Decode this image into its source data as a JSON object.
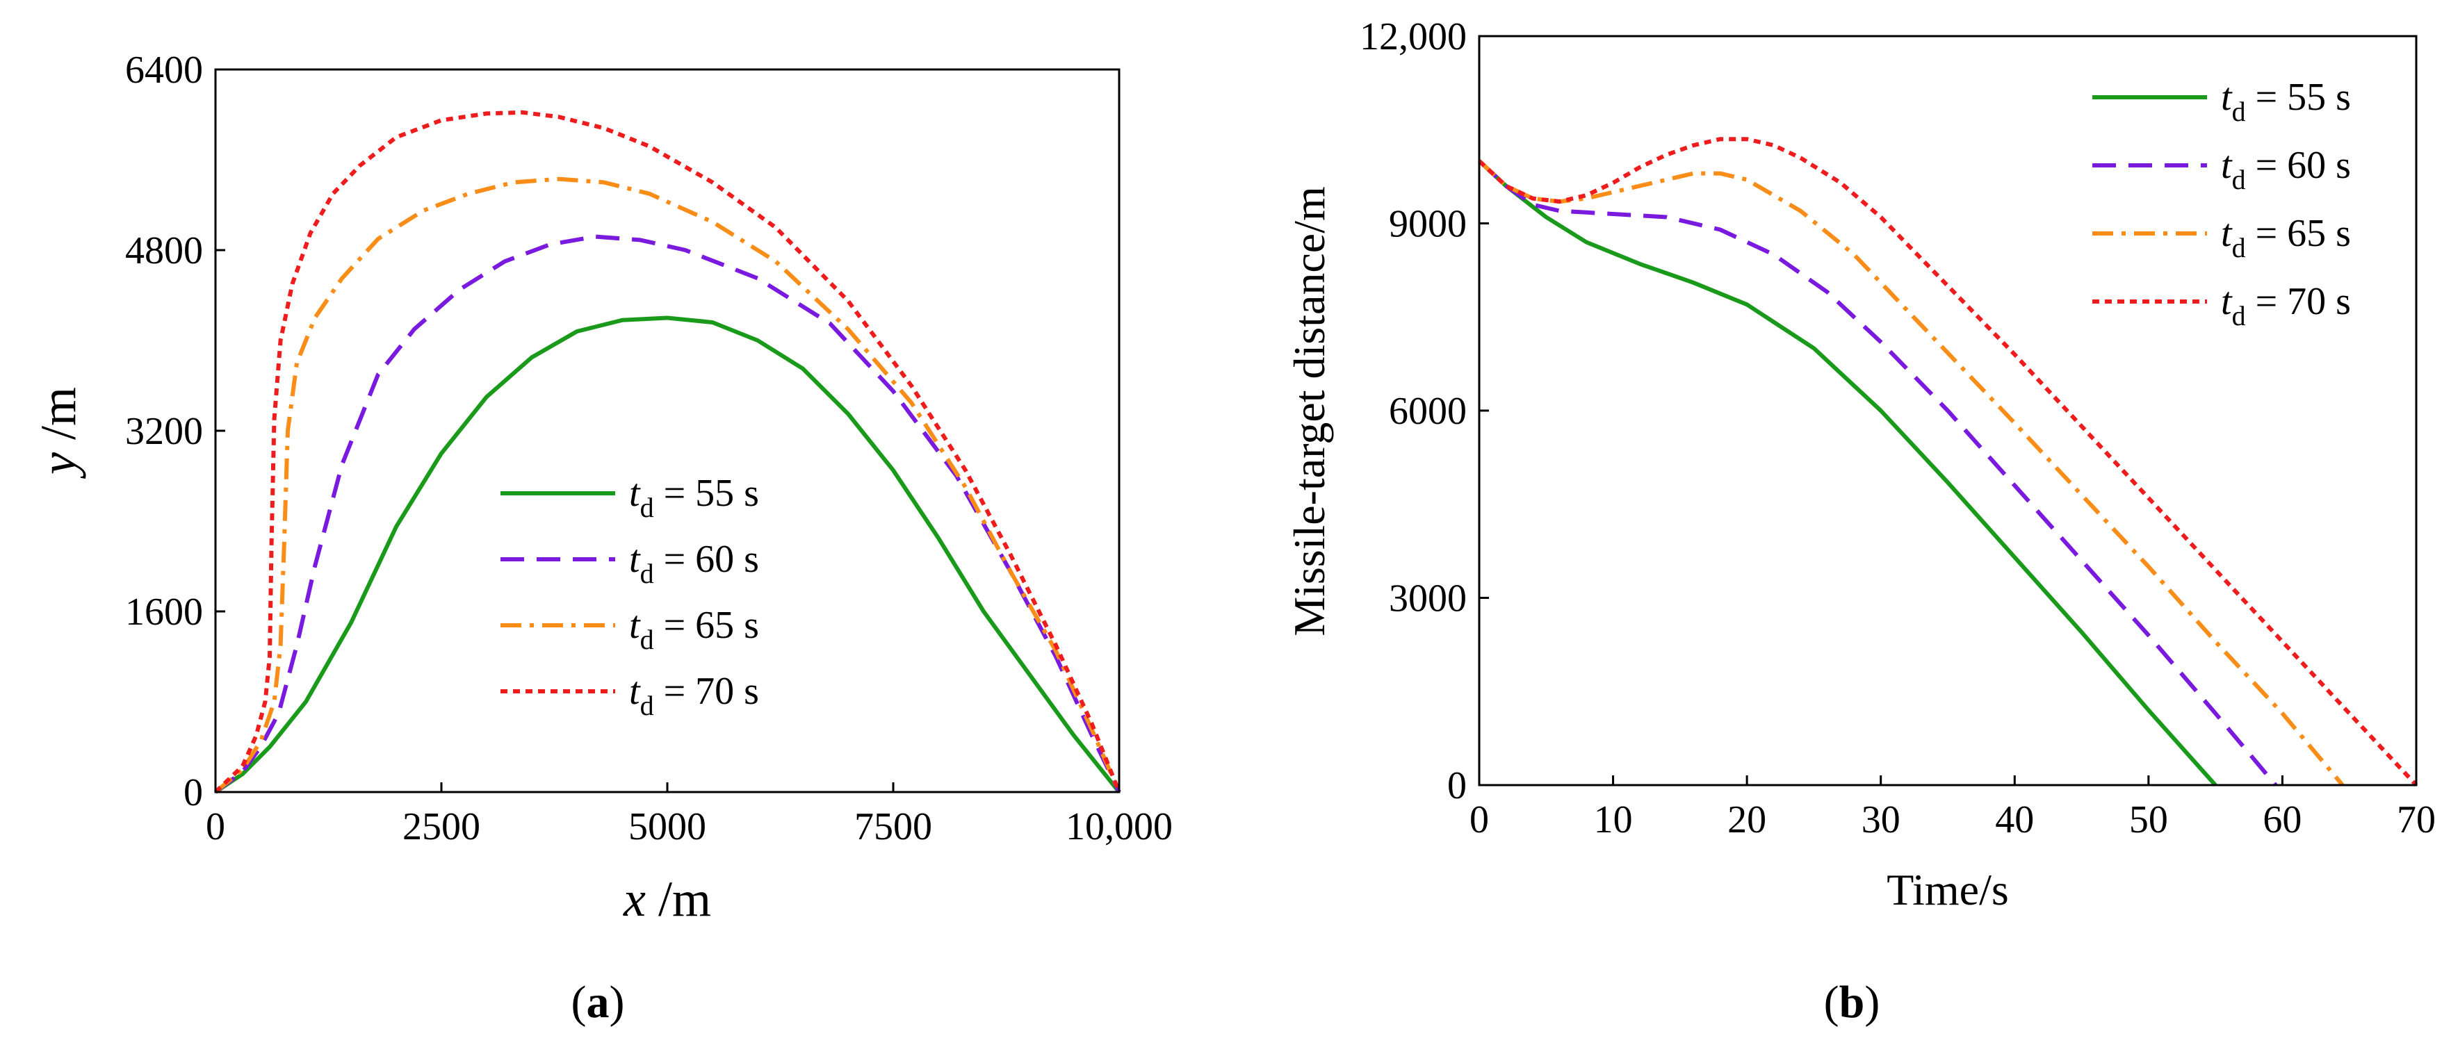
{
  "chart_data": [
    {
      "id": "a",
      "type": "line",
      "panel_label": {
        "pre": "(",
        "letter": "a",
        "post": ")"
      },
      "title": "",
      "xlabel": {
        "var": "x",
        "unit": " /m"
      },
      "ylabel": {
        "var": "y",
        "unit": " /m"
      },
      "xlim": [
        0,
        10000
      ],
      "ylim": [
        0,
        6400
      ],
      "xticks": [
        0,
        2500,
        5000,
        7500,
        10000
      ],
      "xtick_labels": [
        "0",
        "2500",
        "5000",
        "7500",
        "10,000"
      ],
      "yticks": [
        0,
        1600,
        3200,
        4800,
        6400
      ],
      "ytick_labels": [
        "0",
        "1600",
        "3200",
        "4800",
        "6400"
      ],
      "legend_position": "center",
      "series": [
        {
          "var": "t",
          "sub": "d",
          "rest": " = 55 s",
          "color": "#1a9a1a",
          "dash": "solid",
          "x": [
            0,
            300,
            600,
            1000,
            1500,
            2000,
            2500,
            3000,
            3500,
            4000,
            4500,
            5000,
            5500,
            6000,
            6500,
            7000,
            7500,
            8000,
            8500,
            9000,
            9500,
            10000
          ],
          "y": [
            0,
            160,
            400,
            800,
            1500,
            2350,
            3000,
            3500,
            3850,
            4080,
            4180,
            4200,
            4160,
            4000,
            3750,
            3350,
            2850,
            2250,
            1600,
            1050,
            500,
            0
          ]
        },
        {
          "var": "t",
          "sub": "d",
          "rest": " = 60 s",
          "color": "#7a1adf",
          "dash": "dash",
          "x": [
            0,
            300,
            500,
            700,
            900,
            1100,
            1400,
            1800,
            2200,
            2700,
            3200,
            3700,
            4200,
            4700,
            5200,
            6000,
            6800,
            7500,
            8200,
            8800,
            9300,
            9700,
            10000
          ],
          "y": [
            0,
            180,
            400,
            700,
            1300,
            2000,
            2900,
            3700,
            4100,
            4450,
            4700,
            4850,
            4920,
            4890,
            4800,
            4550,
            4150,
            3550,
            2800,
            1950,
            1200,
            500,
            0
          ]
        },
        {
          "var": "t",
          "sub": "d",
          "rest": " = 65 s",
          "color": "#f98d17",
          "dash": "dashdot",
          "x": [
            0,
            300,
            500,
            650,
            720,
            760,
            800,
            900,
            1100,
            1400,
            1800,
            2300,
            2800,
            3300,
            3800,
            4300,
            4800,
            5500,
            6200,
            7000,
            7700,
            8300,
            8800,
            9300,
            9700,
            10000
          ],
          "y": [
            0,
            200,
            450,
            800,
            1300,
            2200,
            3200,
            3800,
            4200,
            4550,
            4900,
            5150,
            5300,
            5400,
            5430,
            5400,
            5300,
            5050,
            4700,
            4100,
            3450,
            2700,
            1950,
            1250,
            550,
            0
          ]
        },
        {
          "var": "t",
          "sub": "d",
          "rest": " = 70 s",
          "color": "#ee1c1c",
          "dash": "dot",
          "x": [
            0,
            300,
            450,
            550,
            600,
            620,
            650,
            720,
            850,
            1050,
            1300,
            1600,
            2000,
            2500,
            3000,
            3400,
            3800,
            4300,
            4800,
            5500,
            6200,
            7000,
            7700,
            8300,
            8800,
            9300,
            9700,
            10000
          ],
          "y": [
            0,
            230,
            500,
            800,
            1200,
            2200,
            3300,
            4000,
            4500,
            4950,
            5300,
            5550,
            5800,
            5950,
            6010,
            6020,
            5980,
            5880,
            5720,
            5400,
            5000,
            4350,
            3600,
            2850,
            2100,
            1300,
            600,
            0
          ]
        }
      ]
    },
    {
      "id": "b",
      "type": "line",
      "panel_label": {
        "pre": "(",
        "letter": "b",
        "post": ")"
      },
      "title": "",
      "xlabel": "Time/s",
      "ylabel": "Missile-target distance/m",
      "xlim": [
        0,
        70
      ],
      "ylim": [
        0,
        12000
      ],
      "xticks": [
        0,
        10,
        20,
        30,
        40,
        50,
        60,
        70
      ],
      "xtick_labels": [
        "0",
        "10",
        "20",
        "30",
        "40",
        "50",
        "60",
        "70"
      ],
      "yticks": [
        0,
        3000,
        6000,
        9000,
        12000
      ],
      "ytick_labels": [
        "0",
        "3000",
        "6000",
        "9000",
        "12,000"
      ],
      "legend_position": "top-right",
      "series": [
        {
          "var": "t",
          "sub": "d",
          "rest": " = 55 s",
          "color": "#1a9a1a",
          "dash": "solid",
          "x": [
            0,
            2,
            5,
            8,
            12,
            16,
            20,
            25,
            30,
            35,
            40,
            45,
            50,
            55
          ],
          "y": [
            10000,
            9600,
            9100,
            8700,
            8350,
            8050,
            7700,
            7000,
            6000,
            4850,
            3650,
            2450,
            1200,
            0
          ]
        },
        {
          "var": "t",
          "sub": "d",
          "rest": " = 60 s",
          "color": "#7a1adf",
          "dash": "dash",
          "x": [
            0,
            2,
            4,
            6,
            10,
            14,
            18,
            22,
            26,
            30,
            35,
            40,
            45,
            50,
            55,
            59.5
          ],
          "y": [
            10000,
            9600,
            9300,
            9200,
            9150,
            9100,
            8900,
            8500,
            7900,
            7100,
            6000,
            4800,
            3600,
            2400,
            1150,
            0
          ]
        },
        {
          "var": "t",
          "sub": "d",
          "rest": " = 65 s",
          "color": "#f98d17",
          "dash": "dashdot",
          "x": [
            0,
            2,
            4,
            6,
            8,
            12,
            16,
            18,
            20,
            24,
            28,
            32,
            36,
            40,
            45,
            50,
            55,
            60,
            64.5
          ],
          "y": [
            10000,
            9600,
            9400,
            9350,
            9400,
            9600,
            9800,
            9800,
            9700,
            9200,
            8500,
            7600,
            6700,
            5800,
            4650,
            3500,
            2300,
            1150,
            0
          ]
        },
        {
          "var": "t",
          "sub": "d",
          "rest": " = 70 s",
          "color": "#ee1c1c",
          "dash": "dot",
          "x": [
            0,
            2,
            4,
            6,
            8,
            10,
            12,
            14,
            16,
            18,
            20,
            22,
            24,
            27,
            30,
            35,
            40,
            45,
            50,
            55,
            60,
            65,
            70
          ],
          "y": [
            10000,
            9600,
            9400,
            9350,
            9450,
            9650,
            9900,
            10100,
            10250,
            10350,
            10350,
            10250,
            10050,
            9650,
            9100,
            8000,
            6900,
            5750,
            4600,
            3450,
            2300,
            1150,
            0
          ]
        }
      ]
    }
  ]
}
